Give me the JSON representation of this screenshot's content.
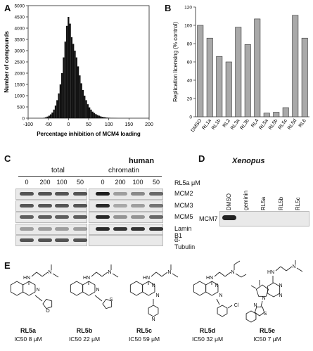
{
  "panels": {
    "A": {
      "label": "A",
      "chart_data": {
        "type": "bar",
        "title": "",
        "xlabel": "Percentage inhibition of MCM4 loading",
        "ylabel": "Number of compounds",
        "xlim": [
          -100,
          200
        ],
        "ylim": [
          0,
          5000
        ],
        "xticks": [
          "-100",
          "-50",
          "0",
          "50",
          "100",
          "150",
          "200"
        ],
        "yticks": [
          "0",
          "500",
          "1000",
          "1500",
          "2000",
          "2500",
          "3000",
          "3500",
          "4000",
          "4500",
          "5000"
        ],
        "bin_width": 2,
        "x": [
          -60,
          -56,
          -52,
          -48,
          -44,
          -40,
          -36,
          -32,
          -28,
          -24,
          -20,
          -16,
          -12,
          -8,
          -4,
          0,
          4,
          8,
          12,
          16,
          20,
          24,
          28,
          32,
          36,
          40,
          44,
          48,
          52,
          56,
          60,
          64,
          68,
          72,
          76,
          80,
          84,
          88,
          92,
          96,
          100,
          104,
          108,
          112,
          116,
          120
        ],
        "values": [
          20,
          40,
          70,
          110,
          170,
          250,
          380,
          560,
          800,
          1100,
          1500,
          2000,
          2700,
          3400,
          4100,
          4500,
          4200,
          3600,
          3300,
          3000,
          2700,
          2300,
          1900,
          1550,
          1250,
          1000,
          800,
          620,
          480,
          380,
          290,
          230,
          180,
          140,
          110,
          80,
          60,
          45,
          35,
          25,
          20,
          15,
          10,
          8,
          5,
          3
        ]
      }
    },
    "B": {
      "label": "B",
      "chart_data": {
        "type": "bar",
        "title": "",
        "xlabel": "",
        "ylabel": "Replication licensing (% control)",
        "ylim": [
          0,
          120
        ],
        "yticks": [
          "0",
          "20",
          "40",
          "60",
          "80",
          "100",
          "120"
        ],
        "categories": [
          "DMSO",
          "RL1a",
          "RL1b",
          "RL2",
          "RL3a",
          "RL3b",
          "RL4",
          "RL5a",
          "RL5b",
          "RL5c",
          "RL5d",
          "RL6"
        ],
        "values": [
          100,
          86,
          66,
          60,
          98,
          79,
          107,
          4,
          5,
          10,
          111,
          86
        ],
        "bar_color": "#a9a9a9"
      }
    },
    "C": {
      "label": "C",
      "title": "human",
      "group_total": "total",
      "group_chromatin": "chromatin",
      "conc_unit": "RL5a μM",
      "lanes": [
        "0",
        "200",
        "100",
        "50",
        "0",
        "200",
        "100",
        "50"
      ],
      "rows": [
        "MCM2",
        "MCM3",
        "MCM5",
        "Lamin B1",
        "α-Tubulin"
      ]
    },
    "D": {
      "label": "D",
      "title": "Xenopus",
      "lanes": [
        "DMSO",
        "geminin",
        "RL5a",
        "RL5b",
        "RL5c"
      ],
      "row": "MCM7"
    },
    "E": {
      "label": "E",
      "compounds": [
        {
          "name": "RL5a",
          "ic50": "IC50 8 μM"
        },
        {
          "name": "RL5b",
          "ic50": "IC50 22 μM"
        },
        {
          "name": "RL5c",
          "ic50": "IC50 59 μM"
        },
        {
          "name": "RL5d",
          "ic50": "IC50 32 μM"
        },
        {
          "name": "RL5e",
          "ic50": "IC50 7 μM"
        }
      ],
      "atom_labels": {
        "n": "N",
        "hn": "HN",
        "s": "S",
        "o": "O",
        "cl": "Cl"
      }
    }
  }
}
